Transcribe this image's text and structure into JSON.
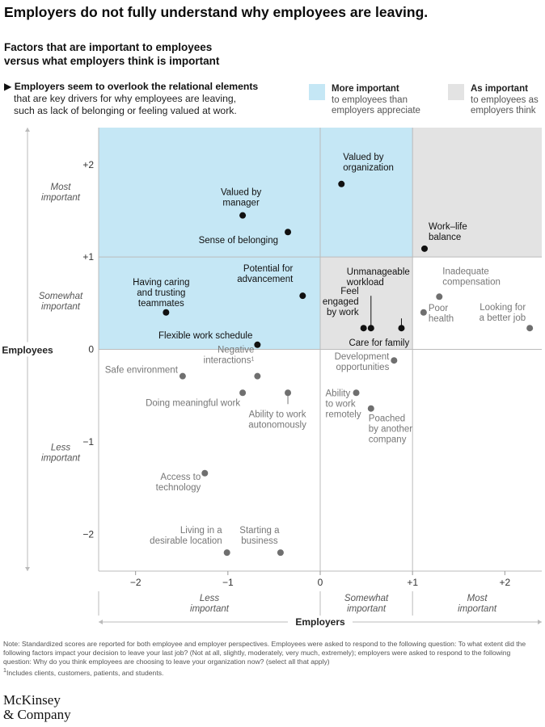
{
  "header": {
    "title": "Employers do not fully understand why employees are leaving.",
    "subtitle_line1": "Factors that are important to employees",
    "subtitle_line2": "versus what employers think is important",
    "key_marker": "▶",
    "key_bold": "Employers seem to overlook the relational elements",
    "key_line2": "that are key drivers for why employees are leaving,",
    "key_line3": "such as lack of belonging or feeling valued at work."
  },
  "legend": [
    {
      "title": "More important",
      "line1": "to employees than",
      "line2": "employers appreciate",
      "color": "#c5e7f5"
    },
    {
      "title": "As important",
      "line1": "to employees as",
      "line2": "employers think",
      "color": "#e3e3e3"
    }
  ],
  "colors": {
    "highlight_point": "#111111",
    "other_point": "#6f6f6f",
    "highlight_text": "#111111",
    "other_text": "#777777",
    "axis": "#999999",
    "gridline": "#bbbbbb"
  },
  "chart_data": {
    "type": "scatter",
    "title": "Factors that are important to employees versus what employers think is important",
    "xlabel": "Employers",
    "ylabel": "Employees",
    "xlim": [
      -2.4,
      2.4
    ],
    "ylim": [
      -2.4,
      2.4
    ],
    "x_ticks": [
      "−2",
      "−1",
      "0",
      "+1",
      "+2"
    ],
    "x_tick_values": [
      -2,
      -1,
      0,
      1,
      2
    ],
    "y_ticks": [
      "+2",
      "+1",
      "0",
      "−1",
      "−2"
    ],
    "y_tick_values": [
      2,
      1,
      0,
      -1,
      -2
    ],
    "x_bands": [
      {
        "line1": "Less",
        "line2": "important",
        "from": -2.4,
        "to": 0
      },
      {
        "line1": "Somewhat",
        "line2": "important",
        "from": 0,
        "to": 1
      },
      {
        "line1": "Most",
        "line2": "important",
        "from": 1,
        "to": 2.4
      }
    ],
    "y_bands": [
      {
        "line1": "Most",
        "line2": "important",
        "from": 1,
        "to": 2.4
      },
      {
        "line1": "Somewhat",
        "line2": "important",
        "from": 0,
        "to": 1
      },
      {
        "line1": "Less",
        "line2": "important",
        "from": -2.4,
        "to": 0
      }
    ],
    "regions": [
      {
        "kind": "more_important",
        "x": [
          -2.4,
          1
        ],
        "y": [
          1,
          2.4
        ]
      },
      {
        "kind": "more_important",
        "x": [
          -2.4,
          0
        ],
        "y": [
          0,
          1
        ]
      },
      {
        "kind": "as_important",
        "x": [
          1,
          2.4
        ],
        "y": [
          1,
          2.4
        ]
      },
      {
        "kind": "as_important",
        "x": [
          0,
          1
        ],
        "y": [
          0,
          1
        ]
      }
    ],
    "footnote_marker": "1",
    "points": [
      {
        "name": "Valued by organization",
        "lines": [
          "Valued by",
          "organization"
        ],
        "x": 0.23,
        "y": 1.79,
        "highlight": true
      },
      {
        "name": "Valued by manager",
        "lines": [
          "Valued by",
          "manager"
        ],
        "x": -0.84,
        "y": 1.45,
        "highlight": true
      },
      {
        "name": "Sense of belonging",
        "lines": [
          "Sense of belonging"
        ],
        "x": -0.35,
        "y": 1.27,
        "highlight": true
      },
      {
        "name": "Work–life balance",
        "lines": [
          "Work–life",
          "balance"
        ],
        "x": 1.13,
        "y": 1.09,
        "highlight": true
      },
      {
        "name": "Potential for advancement",
        "lines": [
          "Potential for",
          "advancement"
        ],
        "x": -0.19,
        "y": 0.58,
        "highlight": true
      },
      {
        "name": "Having caring and trusting teammates",
        "lines": [
          "Having caring",
          "and trusting",
          "teammates"
        ],
        "x": -1.67,
        "y": 0.4,
        "highlight": true
      },
      {
        "name": "Flexible work schedule",
        "lines": [
          "Flexible work schedule"
        ],
        "x": -0.68,
        "y": 0.05,
        "highlight": true
      },
      {
        "name": "Feel engaged by work",
        "lines": [
          "Feel",
          "engaged",
          "by work"
        ],
        "x": 0.47,
        "y": 0.23,
        "highlight": true
      },
      {
        "name": "Unmanageable workload",
        "lines": [
          "Unmanageable",
          "workload"
        ],
        "x": 0.55,
        "y": 0.23,
        "highlight": true
      },
      {
        "name": "Care for family",
        "lines": [
          "Care for family"
        ],
        "x": 0.88,
        "y": 0.23,
        "highlight": true
      },
      {
        "name": "Inadequate compensation",
        "lines": [
          "Inadequate",
          "compensation"
        ],
        "x": 1.29,
        "y": 0.57,
        "highlight": false
      },
      {
        "name": "Poor health",
        "lines": [
          "Poor",
          "health"
        ],
        "x": 1.12,
        "y": 0.4,
        "highlight": false
      },
      {
        "name": "Looking for a better job",
        "lines": [
          "Looking for",
          "a better job"
        ],
        "x": 2.27,
        "y": 0.23,
        "highlight": false
      },
      {
        "name": "Safe environment",
        "lines": [
          "Safe environment"
        ],
        "x": -1.49,
        "y": -0.29,
        "highlight": false
      },
      {
        "name": "Negative interactions",
        "lines": [
          "Negative",
          "interactions"
        ],
        "x": -0.68,
        "y": -0.29,
        "highlight": false,
        "footnote": true
      },
      {
        "name": "Doing meaningful work",
        "lines": [
          "Doing meaningful work"
        ],
        "x": -0.84,
        "y": -0.47,
        "highlight": false
      },
      {
        "name": "Ability to work autonomously",
        "lines": [
          "Ability to work",
          "autonomously"
        ],
        "x": -0.35,
        "y": -0.47,
        "highlight": false
      },
      {
        "name": "Development opportunities",
        "lines": [
          "Development",
          "opportunities"
        ],
        "x": 0.8,
        "y": -0.12,
        "highlight": false
      },
      {
        "name": "Ability to work remotely",
        "lines": [
          "Ability",
          "to work",
          "remotely"
        ],
        "x": 0.39,
        "y": -0.47,
        "highlight": false
      },
      {
        "name": "Poached by another company",
        "lines": [
          "Poached",
          "by another",
          "company"
        ],
        "x": 0.55,
        "y": -0.64,
        "highlight": false
      },
      {
        "name": "Access to technology",
        "lines": [
          "Access to",
          "technology"
        ],
        "x": -1.25,
        "y": -1.34,
        "highlight": false
      },
      {
        "name": "Living in a desirable location",
        "lines": [
          "Living in a",
          "desirable location"
        ],
        "x": -1.01,
        "y": -2.2,
        "highlight": false
      },
      {
        "name": "Starting a business",
        "lines": [
          "Starting a",
          "business"
        ],
        "x": -0.43,
        "y": -2.2,
        "highlight": false
      }
    ]
  },
  "footnote": {
    "note": "Note: Standardized scores are reported for both employee and employer perspectives. Employees were asked to respond to the following question: To what extent did the following factors impact your decision to leave your last job? (Not at all, slightly, moderately, very much, extremely); employers were asked to respond to the following question: Why do you think employees are choosing to leave your organization now? (select all that apply)",
    "marker": "1",
    "footnote1": "Includes clients, customers, patients, and students."
  },
  "logo": {
    "line1": "McKinsey",
    "line2": "& Company"
  }
}
